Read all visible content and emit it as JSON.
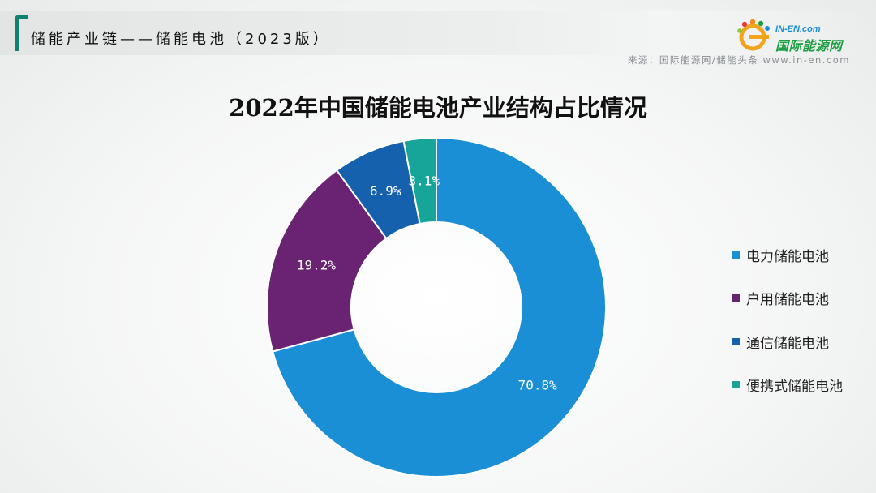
{
  "header": {
    "title": "储能产业链——储能电池（2023版）",
    "source": "来源：国际能源网/储能头条 www.in-en.com"
  },
  "logo": {
    "top_text": "IN-EN.com",
    "main_text": "国际能源网"
  },
  "chart_data": {
    "type": "pie",
    "variant": "donut",
    "title": "2022年中国储能电池产业结构占比情况",
    "legend_position": "right",
    "categories": [
      "电力储能电池",
      "户用储能电池",
      "通信储能电池",
      "便携式储能电池"
    ],
    "values": [
      70.8,
      19.2,
      6.9,
      3.1
    ],
    "unit": "%",
    "data_labels": [
      "70.8%",
      "19.2%",
      "6.9%",
      "3.1%"
    ],
    "colors": [
      "#1b8fd6",
      "#6a2373",
      "#1561ad",
      "#17a59a"
    ]
  }
}
